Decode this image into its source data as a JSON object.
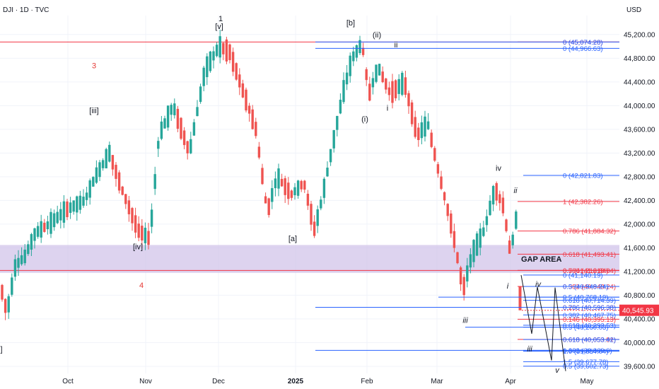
{
  "header": {
    "symbol_line": "DJI · 1D · TVC",
    "currency": "USD"
  },
  "chart_data": {
    "type": "candlestick",
    "price_axis_ticks": [
      "45,200.00",
      "44,800.00",
      "44,400.00",
      "44,000.00",
      "43,600.00",
      "43,200.00",
      "42,800.00",
      "42,400.00",
      "42,000.00",
      "41,600.00",
      "41,200.00",
      "40,800.00",
      "40,400.00",
      "40,000.00",
      "39,600.00"
    ],
    "time_axis_ticks": [
      "Oct",
      "Nov",
      "Dec",
      "2025",
      "Feb",
      "Mar",
      "Apr",
      "May"
    ],
    "ylim": [
      39480,
      45520
    ],
    "last_price": {
      "value": 40545.93,
      "label": "40,545.93",
      "color": "#f23645"
    },
    "up_color": "#26a69a",
    "down_color": "#ef5350",
    "gap_zone": {
      "label": "GAP AREA",
      "from": 41178,
      "to": 41648
    },
    "wave_labels": [
      {
        "text": "1",
        "t": 1,
        "p": 45470
      },
      {
        "text": "[v]",
        "t": 1,
        "p": 45340
      },
      {
        "text": "[b]",
        "t": 2,
        "p": 45400
      },
      {
        "text": "(ii)",
        "t": 2,
        "p": 45200
      },
      {
        "text": "ii",
        "t": 2,
        "p": 45030
      },
      {
        "text": "3",
        "t": 0,
        "p": 44680
      },
      {
        "text": "[iii]",
        "t": 0,
        "p": 43920
      },
      {
        "text": "(i)",
        "t": 2,
        "p": 43780
      },
      {
        "text": "i",
        "t": 2,
        "p": 43960
      },
      {
        "text": "iv",
        "t": 3,
        "p": 42950
      },
      {
        "text": "ii",
        "t": 3,
        "p": 42570
      },
      {
        "text": "[iv]",
        "t": 0,
        "p": 41620
      },
      {
        "text": "[a]",
        "t": 1,
        "p": 41760
      },
      {
        "text": "4",
        "t": 0,
        "p": 40970
      },
      {
        "text": "i",
        "t": 3,
        "p": 40960
      },
      {
        "text": "iii",
        "t": 3,
        "p": 40380
      },
      {
        "text": "iv",
        "t": 3,
        "p": 40990
      },
      {
        "text": "iii",
        "t": 3,
        "p": 39900
      },
      {
        "text": "v",
        "t": 3,
        "p": 39540
      },
      {
        "text": "]",
        "t": 0,
        "p": 39890
      }
    ],
    "fib_levels": [
      {
        "label": "0 (45,074.28)",
        "price": 45074.28,
        "color": "#f23645"
      },
      {
        "label": "0 (45,074.28)",
        "price": 45074.28,
        "color": "#2962ff"
      },
      {
        "label": "0 (44,966.63)",
        "price": 44966.63,
        "color": "#2962ff"
      },
      {
        "label": "0 (42,821.83)",
        "price": 42821.83,
        "color": "#2962ff"
      },
      {
        "label": "1 (42,382.26)",
        "price": 42382.26,
        "color": "#f23645"
      },
      {
        "label": "0.786 (41,884.32)",
        "price": 41884.32,
        "color": "#f23645"
      },
      {
        "label": "0.618 (41,493.41)",
        "price": 41493.41,
        "color": "#f23645"
      },
      {
        "label": "0.5 (41,218.84)",
        "price": 41218.84,
        "color": "#f23645"
      },
      {
        "label": "0.786 (41,218.84)",
        "price": 41218.84,
        "color": "#f23645"
      },
      {
        "label": "0 (41,140.19)",
        "price": 41140.19,
        "color": "#2962ff"
      },
      {
        "label": "0.382 (40,948.24)",
        "price": 40948.24,
        "color": "#f23645"
      },
      {
        "label": "0.5 (40,948.24)",
        "price": 40948.24,
        "color": "#2962ff"
      },
      {
        "label": "0.5 (40,768.19)",
        "price": 40768.19,
        "color": "#2962ff"
      },
      {
        "label": "0.618 (40,714.39)",
        "price": 40714.39,
        "color": "#2962ff"
      },
      {
        "label": "0.236 (40,596.38)",
        "price": 40596.38,
        "color": "#f23645"
      },
      {
        "label": "0.786 (40,596.38)",
        "price": 40596.38,
        "color": "#2962ff"
      },
      {
        "label": "0.382 (40,467.75)",
        "price": 40467.75,
        "color": "#2962ff"
      },
      {
        "label": "0.146 (40,395.13)",
        "price": 40395.13,
        "color": "#f23645"
      },
      {
        "label": "0.618 (40,293.53)",
        "price": 40293.53,
        "color": "#2962ff"
      },
      {
        "label": "0.5 (40,260.03)",
        "price": 40260.03,
        "color": "#2962ff"
      },
      {
        "label": "0.618 (40,053.81)",
        "price": 40053.81,
        "color": "#f23645"
      },
      {
        "label": "0.618 (40,053.42)",
        "price": 40053.42,
        "color": "#2962ff"
      },
      {
        "label": "0.382 (39,869.0)",
        "price": 39869.0,
        "color": "#2962ff"
      },
      {
        "label": "1.0 (39,854.04)",
        "price": 39854.04,
        "color": "#2962ff"
      },
      {
        "label": "1.5 (39,677.78)",
        "price": 39677.78,
        "color": "#2962ff"
      },
      {
        "label": "0.5 (39,602.73)",
        "price": 39602.73,
        "color": "#2962ff"
      }
    ],
    "resistance_line": {
      "price": 45074.28,
      "color": "#f23645"
    },
    "support_line": {
      "price": 41218.84,
      "color": "#f23645"
    },
    "projection_path": [
      {
        "t": 0,
        "p": 41140
      },
      {
        "t": 1,
        "p": 40150
      },
      {
        "t": 2,
        "p": 40940
      },
      {
        "t": 3,
        "p": 39700
      },
      {
        "t": 4,
        "p": 40930
      },
      {
        "t": 5,
        "p": 39520
      }
    ]
  }
}
